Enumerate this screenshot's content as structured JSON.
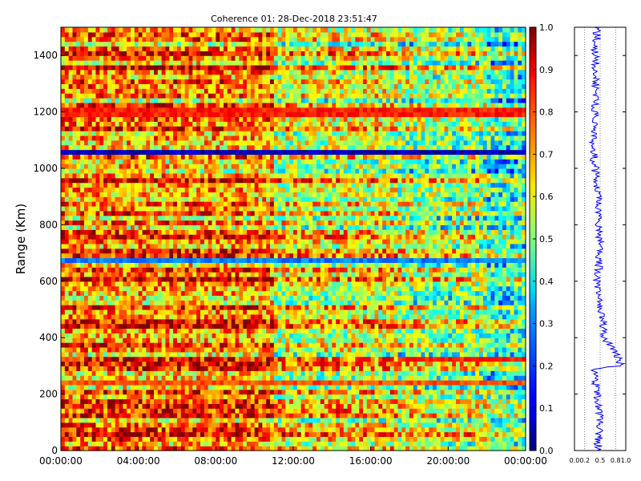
{
  "chart_data": [
    {
      "type": "heatmap",
      "title": "Coherence 01: 28-Dec-2018 23:51:47",
      "xlabel": "",
      "ylabel": "Range (Km)",
      "x_ticks": [
        "00:00:00",
        "04:00:00",
        "08:00:00",
        "12:00:00",
        "16:00:00",
        "20:00:00",
        "00:00:00"
      ],
      "x_range_hours": [
        0,
        24
      ],
      "y_ticks": [
        0,
        200,
        400,
        600,
        800,
        1000,
        1200,
        1400
      ],
      "ylim": [
        0,
        1500
      ],
      "colorbar": {
        "colormap": "jet",
        "range": [
          0,
          1
        ],
        "ticks": [
          "0.0",
          "0.1",
          "0.2",
          "0.3",
          "0.4",
          "0.5",
          "0.6",
          "0.7",
          "0.8",
          "0.9",
          "1.0"
        ]
      },
      "features": [
        {
          "range_km": 1055,
          "time_hours": [
            0,
            24
          ],
          "value": 0.05
        },
        {
          "range_km": 1200,
          "time_hours": [
            0,
            24
          ],
          "value": 0.85
        },
        {
          "range_km": 235,
          "time_hours": [
            0,
            24
          ],
          "value": 0.8
        },
        {
          "range_km": 320,
          "time_hours": [
            17.5,
            24
          ],
          "value": 0.85
        },
        {
          "range_km": 670,
          "time_hours": [
            0,
            24
          ],
          "value": 0.25
        },
        {
          "range_km": 140,
          "time_hours": [
            14,
            15
          ],
          "value": 0.9
        }
      ],
      "time_column_means": [
        {
          "time_hours": [
            0,
            11
          ],
          "value": 0.75
        },
        {
          "time_hours": [
            11,
            17.5
          ],
          "value": 0.62
        },
        {
          "time_hours": [
            17.5,
            22
          ],
          "value": 0.55
        },
        {
          "time_hours": [
            22,
            24
          ],
          "value": 0.45
        }
      ],
      "grid": false
    },
    {
      "type": "line",
      "title": "",
      "xlabel": "",
      "ylabel": "",
      "xlim": [
        0,
        1
      ],
      "ylim": [
        0,
        1500
      ],
      "x_ticks": [
        "0.0",
        "0.2",
        "0.5",
        "0.8",
        "1.0"
      ],
      "grid": true,
      "series": [
        {
          "color": "#0000ff",
          "range_km": [
            0,
            100,
            200,
            290,
            300,
            350,
            370,
            390,
            400,
            450,
            500,
            600,
            700,
            800,
            900,
            1000,
            1100,
            1200,
            1300,
            1400,
            1500
          ],
          "values": [
            0.45,
            0.5,
            0.45,
            0.35,
            0.92,
            0.8,
            0.72,
            0.62,
            0.58,
            0.55,
            0.52,
            0.45,
            0.5,
            0.48,
            0.45,
            0.4,
            0.35,
            0.4,
            0.42,
            0.4,
            0.45
          ]
        }
      ]
    }
  ]
}
